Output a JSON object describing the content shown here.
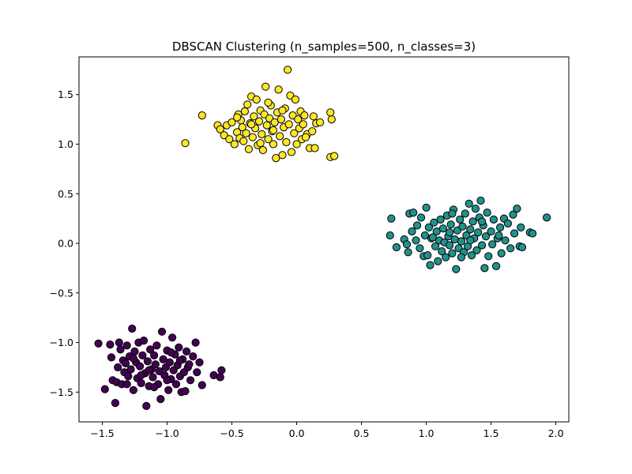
{
  "chart_data": {
    "type": "scatter",
    "title": "DBSCAN Clustering (n_samples=500, n_classes=3)",
    "xlabel": "",
    "ylabel": "",
    "xlim": [
      -1.68,
      2.1
    ],
    "ylim": [
      -1.8,
      1.88
    ],
    "xticks": [
      -1.5,
      -1.0,
      -0.5,
      0.0,
      0.5,
      1.0,
      1.5,
      2.0
    ],
    "xtick_labels": [
      "−1.5",
      "−1.0",
      "−0.5",
      "0.0",
      "0.5",
      "1.0",
      "1.5",
      "2.0"
    ],
    "yticks": [
      -1.5,
      -1.0,
      -0.5,
      0.0,
      0.5,
      1.0,
      1.5
    ],
    "ytick_labels": [
      "−1.5",
      "−1.0",
      "−0.5",
      "0.0",
      "0.5",
      "1.0",
      "1.5"
    ],
    "grid": false,
    "marker_edge_color": "#000000",
    "series": [
      {
        "color": "#440154",
        "points": [
          [
            -1.53,
            -1.01
          ],
          [
            -1.48,
            -1.47
          ],
          [
            -1.43,
            -1.15
          ],
          [
            -1.42,
            -1.38
          ],
          [
            -1.4,
            -1.61
          ],
          [
            -1.39,
            -1.4
          ],
          [
            -1.38,
            -1.25
          ],
          [
            -1.37,
            -1.0
          ],
          [
            -1.36,
            -1.07
          ],
          [
            -1.35,
            -1.42
          ],
          [
            -1.34,
            -1.18
          ],
          [
            -1.33,
            -1.3
          ],
          [
            -1.32,
            -1.21
          ],
          [
            -1.31,
            -1.03
          ],
          [
            -1.3,
            -1.34
          ],
          [
            -1.29,
            -1.14
          ],
          [
            -1.28,
            -1.27
          ],
          [
            -1.27,
            -0.86
          ],
          [
            -1.26,
            -1.48
          ],
          [
            -1.25,
            -1.09
          ],
          [
            -1.24,
            -1.2
          ],
          [
            -1.23,
            -1.36
          ],
          [
            -1.22,
            -1.0
          ],
          [
            -1.21,
            -1.24
          ],
          [
            -1.2,
            -1.41
          ],
          [
            -1.19,
            -1.13
          ],
          [
            -1.18,
            -0.98
          ],
          [
            -1.17,
            -1.31
          ],
          [
            -1.16,
            -1.64
          ],
          [
            -1.15,
            -1.19
          ],
          [
            -1.14,
            -1.44
          ],
          [
            -1.13,
            -1.07
          ],
          [
            -1.12,
            -1.27
          ],
          [
            -1.11,
            -1.35
          ],
          [
            -1.1,
            -1.13
          ],
          [
            -1.09,
            -1.22
          ],
          [
            -1.08,
            -1.03
          ],
          [
            -1.07,
            -1.42
          ],
          [
            -1.06,
            -1.29
          ],
          [
            -1.05,
            -1.57
          ],
          [
            -1.04,
            -0.89
          ],
          [
            -1.03,
            -1.17
          ],
          [
            -1.02,
            -1.33
          ],
          [
            -1.01,
            -1.25
          ],
          [
            -1.0,
            -1.08
          ],
          [
            -0.99,
            -1.48
          ],
          [
            -0.98,
            -1.2
          ],
          [
            -0.97,
            -1.37
          ],
          [
            -0.96,
            -0.95
          ],
          [
            -0.95,
            -1.28
          ],
          [
            -0.94,
            -1.12
          ],
          [
            -0.93,
            -1.42
          ],
          [
            -0.92,
            -1.23
          ],
          [
            -0.91,
            -1.05
          ],
          [
            -0.9,
            -1.34
          ],
          [
            -0.89,
            -1.5
          ],
          [
            -0.88,
            -1.17
          ],
          [
            -0.87,
            -1.3
          ],
          [
            -0.86,
            -1.49
          ],
          [
            -0.85,
            -1.09
          ],
          [
            -0.84,
            -1.25
          ],
          [
            -0.82,
            -1.38
          ],
          [
            -0.8,
            -1.14
          ],
          [
            -0.78,
            -1.0
          ],
          [
            -0.77,
            -1.3
          ],
          [
            -0.75,
            -1.2
          ],
          [
            -0.73,
            -1.43
          ],
          [
            -0.64,
            -1.33
          ],
          [
            -0.59,
            -1.35
          ],
          [
            -0.58,
            -1.28
          ],
          [
            -1.44,
            -1.02
          ],
          [
            -1.2,
            -1.33
          ],
          [
            -1.1,
            -1.45
          ],
          [
            -0.97,
            -1.1
          ],
          [
            -1.26,
            -1.16
          ],
          [
            -1.0,
            -1.38
          ],
          [
            -0.9,
            -1.18
          ],
          [
            -1.14,
            -1.28
          ],
          [
            -1.31,
            -1.42
          ],
          [
            -0.83,
            -1.22
          ]
        ]
      },
      {
        "color": "#21918c",
        "points": [
          [
            0.72,
            0.08
          ],
          [
            0.73,
            0.25
          ],
          [
            0.77,
            -0.04
          ],
          [
            0.83,
            0.04
          ],
          [
            0.85,
            -0.01
          ],
          [
            0.86,
            -0.09
          ],
          [
            0.87,
            0.3
          ],
          [
            0.89,
            0.12
          ],
          [
            0.9,
            0.31
          ],
          [
            0.92,
            0.03
          ],
          [
            0.93,
            0.18
          ],
          [
            0.95,
            -0.05
          ],
          [
            0.96,
            0.26
          ],
          [
            0.98,
            -0.13
          ],
          [
            0.99,
            0.08
          ],
          [
            1.0,
            0.36
          ],
          [
            1.01,
            -0.12
          ],
          [
            1.02,
            0.16
          ],
          [
            1.03,
            -0.22
          ],
          [
            1.04,
            0.05
          ],
          [
            1.06,
            0.21
          ],
          [
            1.07,
            -0.03
          ],
          [
            1.08,
            0.12
          ],
          [
            1.09,
            -0.18
          ],
          [
            1.1,
            0.03
          ],
          [
            1.11,
            0.24
          ],
          [
            1.12,
            -0.08
          ],
          [
            1.13,
            0.15
          ],
          [
            1.14,
            0.01
          ],
          [
            1.15,
            -0.14
          ],
          [
            1.16,
            0.28
          ],
          [
            1.17,
            0.07
          ],
          [
            1.18,
            -0.02
          ],
          [
            1.19,
            0.19
          ],
          [
            1.2,
            -0.1
          ],
          [
            1.21,
            0.34
          ],
          [
            1.22,
            0.04
          ],
          [
            1.23,
            -0.26
          ],
          [
            1.24,
            0.13
          ],
          [
            1.25,
            -0.05
          ],
          [
            1.26,
            0.24
          ],
          [
            1.27,
            0.02
          ],
          [
            1.28,
            0.17
          ],
          [
            1.29,
            -0.09
          ],
          [
            1.3,
            0.3
          ],
          [
            1.31,
            0.08
          ],
          [
            1.32,
            -0.03
          ],
          [
            1.33,
            0.4
          ],
          [
            1.34,
            0.14
          ],
          [
            1.35,
            -0.12
          ],
          [
            1.36,
            0.22
          ],
          [
            1.37,
            0.05
          ],
          [
            1.38,
            0.35
          ],
          [
            1.39,
            -0.07
          ],
          [
            1.4,
            0.11
          ],
          [
            1.41,
            0.26
          ],
          [
            1.42,
            0.43
          ],
          [
            1.43,
            -0.02
          ],
          [
            1.44,
            0.18
          ],
          [
            1.45,
            -0.25
          ],
          [
            1.46,
            0.07
          ],
          [
            1.47,
            0.31
          ],
          [
            1.48,
            -0.13
          ],
          [
            1.5,
            0.12
          ],
          [
            1.51,
            -0.01
          ],
          [
            1.52,
            0.24
          ],
          [
            1.54,
            -0.23
          ],
          [
            1.55,
            0.05
          ],
          [
            1.57,
            0.16
          ],
          [
            1.58,
            -0.1
          ],
          [
            1.6,
            0.25
          ],
          [
            1.61,
            0.03
          ],
          [
            1.63,
            0.2
          ],
          [
            1.65,
            -0.05
          ],
          [
            1.67,
            0.29
          ],
          [
            1.68,
            0.1
          ],
          [
            1.7,
            0.35
          ],
          [
            1.72,
            -0.03
          ],
          [
            1.73,
            0.16
          ],
          [
            1.8,
            0.11
          ],
          [
            1.82,
            0.1
          ],
          [
            1.93,
            0.26
          ],
          [
            1.74,
            -0.04
          ],
          [
            1.56,
            0.08
          ],
          [
            1.34,
            0.03
          ],
          [
            1.18,
            0.11
          ],
          [
            1.05,
            0.06
          ],
          [
            1.27,
            -0.14
          ],
          [
            1.43,
            0.22
          ],
          [
            1.2,
            0.3
          ]
        ]
      },
      {
        "color": "#fde725",
        "points": [
          [
            -0.86,
            1.01
          ],
          [
            -0.73,
            1.29
          ],
          [
            -0.61,
            1.19
          ],
          [
            -0.59,
            1.15
          ],
          [
            -0.56,
            1.09
          ],
          [
            -0.54,
            1.19
          ],
          [
            -0.52,
            1.05
          ],
          [
            -0.5,
            1.22
          ],
          [
            -0.48,
            1.0
          ],
          [
            -0.46,
            1.12
          ],
          [
            -0.45,
            1.3
          ],
          [
            -0.44,
            1.06
          ],
          [
            -0.43,
            1.24
          ],
          [
            -0.42,
            1.17
          ],
          [
            -0.41,
            1.03
          ],
          [
            -0.4,
            1.33
          ],
          [
            -0.39,
            1.11
          ],
          [
            -0.38,
            1.4
          ],
          [
            -0.37,
            0.95
          ],
          [
            -0.36,
            1.21
          ],
          [
            -0.35,
            1.48
          ],
          [
            -0.34,
            1.07
          ],
          [
            -0.33,
            1.28
          ],
          [
            -0.32,
            1.16
          ],
          [
            -0.31,
            1.45
          ],
          [
            -0.3,
            0.99
          ],
          [
            -0.29,
            1.23
          ],
          [
            -0.28,
            1.34
          ],
          [
            -0.27,
            1.1
          ],
          [
            -0.26,
            0.94
          ],
          [
            -0.25,
            1.3
          ],
          [
            -0.24,
            1.58
          ],
          [
            -0.23,
            1.19
          ],
          [
            -0.22,
            1.05
          ],
          [
            -0.21,
            1.26
          ],
          [
            -0.2,
            1.39
          ],
          [
            -0.19,
            1.13
          ],
          [
            -0.18,
            1.0
          ],
          [
            -0.17,
            1.22
          ],
          [
            -0.16,
            0.86
          ],
          [
            -0.15,
            1.32
          ],
          [
            -0.14,
            1.55
          ],
          [
            -0.13,
            1.08
          ],
          [
            -0.12,
            1.25
          ],
          [
            -0.11,
            0.89
          ],
          [
            -0.1,
            1.17
          ],
          [
            -0.09,
            1.36
          ],
          [
            -0.08,
            1.02
          ],
          [
            -0.07,
            1.75
          ],
          [
            -0.06,
            1.2
          ],
          [
            -0.05,
            1.49
          ],
          [
            -0.04,
            0.92
          ],
          [
            -0.03,
            1.29
          ],
          [
            -0.02,
            1.11
          ],
          [
            -0.01,
            1.45
          ],
          [
            0.0,
            1.0
          ],
          [
            0.01,
            1.25
          ],
          [
            0.02,
            1.16
          ],
          [
            0.03,
            1.33
          ],
          [
            0.04,
            1.05
          ],
          [
            0.05,
            1.2
          ],
          [
            0.06,
            1.29
          ],
          [
            0.08,
            1.1
          ],
          [
            0.1,
            0.96
          ],
          [
            0.12,
            1.13
          ],
          [
            0.13,
            1.28
          ],
          [
            0.14,
            0.96
          ],
          [
            0.15,
            1.21
          ],
          [
            0.18,
            1.22
          ],
          [
            0.26,
            0.87
          ],
          [
            0.27,
            1.25
          ],
          [
            0.29,
            0.88
          ],
          [
            0.26,
            1.32
          ],
          [
            -0.46,
            1.27
          ],
          [
            -0.28,
            1.01
          ],
          [
            -0.18,
            1.14
          ],
          [
            -0.11,
            1.34
          ],
          [
            0.07,
            1.07
          ],
          [
            -0.35,
            1.2
          ],
          [
            -0.22,
            1.42
          ]
        ]
      }
    ]
  }
}
